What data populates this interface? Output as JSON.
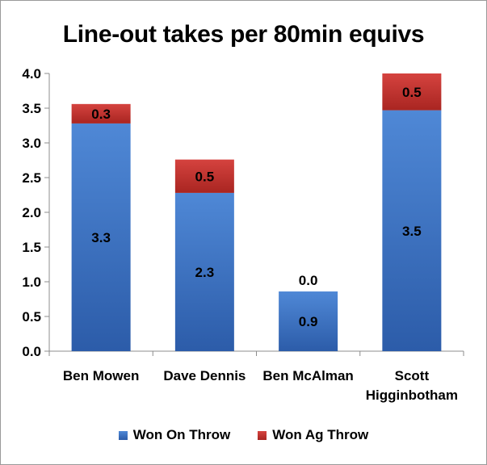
{
  "chart_data": {
    "type": "bar",
    "stacked": true,
    "title": "Line-out takes per 80min equivs",
    "categories": [
      [
        "Ben Mowen"
      ],
      [
        "Dave Dennis"
      ],
      [
        "Ben McAlman"
      ],
      [
        "Scott",
        "Higginbotham"
      ]
    ],
    "series": [
      {
        "name": "Won On Throw",
        "values": [
          3.28,
          2.28,
          0.86,
          3.47
        ],
        "labels": [
          "3.3",
          "2.3",
          "0.9",
          "3.5"
        ],
        "color_top": "#4f88d6",
        "color_bottom": "#2c5ca9"
      },
      {
        "name": "Won Ag Throw",
        "values": [
          0.28,
          0.48,
          0.0,
          0.53
        ],
        "labels": [
          "0.3",
          "0.5",
          "0.0",
          "0.5"
        ],
        "color_top": "#d5433f",
        "color_bottom": "#a92521"
      }
    ],
    "yticks": [
      "0.0",
      "0.5",
      "1.0",
      "1.5",
      "2.0",
      "2.5",
      "3.0",
      "3.5",
      "4.0"
    ],
    "ylim": [
      0,
      4
    ],
    "grid": false,
    "legend": "bottom"
  }
}
